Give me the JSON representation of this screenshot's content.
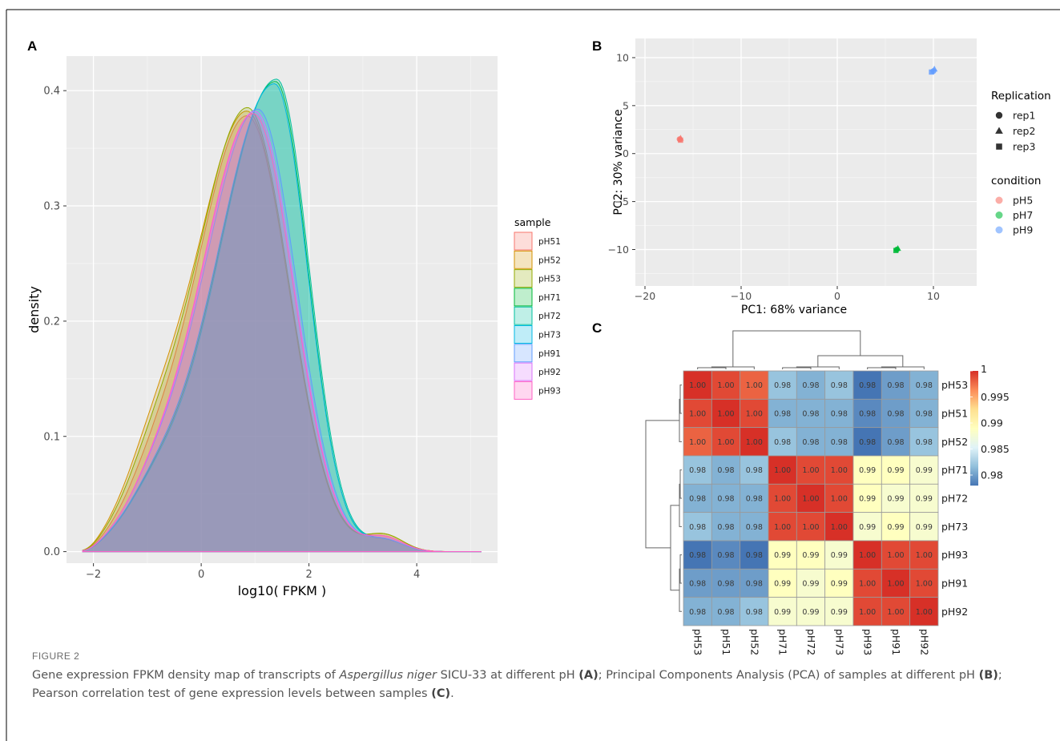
{
  "figure": {
    "label": "FIGURE 2",
    "caption_parts": {
      "p1": "Gene expression FPKM density map of transcripts of ",
      "species": "Aspergillus niger",
      "p2": " SICU-33 at different pH ",
      "refA": "(A)",
      "p3": "; Principal Components Analysis (PCA) of samples at different pH ",
      "refB": "(B)",
      "p4": "; Pearson correlation test of gene expression levels between samples ",
      "refC": "(C)",
      "p5": "."
    }
  },
  "chart_data": [
    {
      "panel": "A",
      "type": "area",
      "xlabel": "log10( FPKM )",
      "ylabel": "density",
      "xlim": [
        -2.5,
        5.5
      ],
      "ylim": [
        -0.01,
        0.43
      ],
      "xticks": [
        -2,
        0,
        2,
        4
      ],
      "yticks": [
        0.0,
        0.1,
        0.2,
        0.3,
        0.4
      ],
      "ytick_labels": [
        "0.0",
        "0.1",
        "0.2",
        "0.3",
        "0.4"
      ],
      "legend_title": "sample",
      "legend_position": "right",
      "grid": true,
      "series": [
        {
          "name": "pH51",
          "color": "#F8766D",
          "mode": 0.85,
          "peak": 0.378,
          "sdL": 0.95,
          "sdR": 0.78,
          "sh1": 0.04,
          "sh2": 0.012
        },
        {
          "name": "pH52",
          "color": "#D39200",
          "mode": 0.85,
          "peak": 0.382,
          "sdL": 0.97,
          "sdR": 0.77,
          "sh1": 0.055,
          "sh2": 0.014
        },
        {
          "name": "pH53",
          "color": "#93AA00",
          "mode": 0.86,
          "peak": 0.385,
          "sdL": 0.96,
          "sdR": 0.77,
          "sh1": 0.05,
          "sh2": 0.014
        },
        {
          "name": "pH71",
          "color": "#00BA38",
          "mode": 1.38,
          "peak": 0.408,
          "sdL": 1.1,
          "sdR": 0.6,
          "sh1": 0.03,
          "sh2": 0.01
        },
        {
          "name": "pH72",
          "color": "#00C19F",
          "mode": 1.4,
          "peak": 0.41,
          "sdL": 1.1,
          "sdR": 0.6,
          "sh1": 0.03,
          "sh2": 0.01
        },
        {
          "name": "pH73",
          "color": "#00B9E3",
          "mode": 1.36,
          "peak": 0.406,
          "sdL": 1.1,
          "sdR": 0.61,
          "sh1": 0.03,
          "sh2": 0.01
        },
        {
          "name": "pH91",
          "color": "#619CFF",
          "mode": 1.05,
          "peak": 0.384,
          "sdL": 1.02,
          "sdR": 0.72,
          "sh1": 0.03,
          "sh2": 0.01
        },
        {
          "name": "pH92",
          "color": "#DB72FB",
          "mode": 1.0,
          "peak": 0.382,
          "sdL": 1.0,
          "sdR": 0.73,
          "sh1": 0.03,
          "sh2": 0.012
        },
        {
          "name": "pH93",
          "color": "#FF61C3",
          "mode": 0.97,
          "peak": 0.38,
          "sdL": 0.99,
          "sdR": 0.74,
          "sh1": 0.03,
          "sh2": 0.012
        }
      ]
    },
    {
      "panel": "B",
      "type": "scatter",
      "xlabel": "PC1: 68% variance",
      "ylabel": "PC2: 30% variance",
      "xlim": [
        -21,
        14.5
      ],
      "ylim": [
        -13.8,
        12
      ],
      "xticks": [
        -20,
        -10,
        0,
        10
      ],
      "xtick_labels": [
        "−20",
        "−10",
        "0",
        "10"
      ],
      "yticks": [
        -10,
        -5,
        0,
        5,
        10
      ],
      "ytick_labels": [
        "−10",
        "−5",
        "0",
        "5",
        "10"
      ],
      "grid": true,
      "legend_position": "right",
      "shape_legend": {
        "title": "Replication",
        "items": [
          "rep1",
          "rep2",
          "rep3"
        ]
      },
      "color_legend": {
        "title": "condition",
        "items": [
          {
            "name": "pH5",
            "color": "#F8766D"
          },
          {
            "name": "pH7",
            "color": "#00BA38"
          },
          {
            "name": "pH9",
            "color": "#619CFF"
          }
        ]
      },
      "points": [
        {
          "condition": "pH5",
          "rep": "rep1",
          "x": -16.4,
          "y": 1.5
        },
        {
          "condition": "pH5",
          "rep": "rep2",
          "x": -16.3,
          "y": 1.6
        },
        {
          "condition": "pH5",
          "rep": "rep3",
          "x": -16.3,
          "y": 1.4
        },
        {
          "condition": "pH7",
          "rep": "rep1",
          "x": 6.2,
          "y": -10.0
        },
        {
          "condition": "pH7",
          "rep": "rep2",
          "x": 6.3,
          "y": -9.9
        },
        {
          "condition": "pH7",
          "rep": "rep3",
          "x": 6.1,
          "y": -10.1
        },
        {
          "condition": "pH9",
          "rep": "rep1",
          "x": 10.0,
          "y": 8.6
        },
        {
          "condition": "pH9",
          "rep": "rep2",
          "x": 10.1,
          "y": 8.8
        },
        {
          "condition": "pH9",
          "rep": "rep3",
          "x": 9.8,
          "y": 8.5
        }
      ]
    },
    {
      "panel": "C",
      "type": "heatmap",
      "columns": [
        "pH53",
        "pH51",
        "pH52",
        "pH71",
        "pH72",
        "pH73",
        "pH93",
        "pH91",
        "pH92"
      ],
      "rows": [
        "pH53",
        "pH51",
        "pH52",
        "pH71",
        "pH72",
        "pH73",
        "pH93",
        "pH91",
        "pH92"
      ],
      "labels": [
        [
          "1.00",
          "1.00",
          "1.00",
          "0.98",
          "0.98",
          "0.98",
          "0.98",
          "0.98",
          "0.98"
        ],
        [
          "1.00",
          "1.00",
          "1.00",
          "0.98",
          "0.98",
          "0.98",
          "0.98",
          "0.98",
          "0.98"
        ],
        [
          "1.00",
          "1.00",
          "1.00",
          "0.98",
          "0.98",
          "0.98",
          "0.98",
          "0.98",
          "0.98"
        ],
        [
          "0.98",
          "0.98",
          "0.98",
          "1.00",
          "1.00",
          "1.00",
          "0.99",
          "0.99",
          "0.99"
        ],
        [
          "0.98",
          "0.98",
          "0.98",
          "1.00",
          "1.00",
          "1.00",
          "0.99",
          "0.99",
          "0.99"
        ],
        [
          "0.98",
          "0.98",
          "0.98",
          "1.00",
          "1.00",
          "1.00",
          "0.99",
          "0.99",
          "0.99"
        ],
        [
          "0.98",
          "0.98",
          "0.98",
          "0.99",
          "0.99",
          "0.99",
          "1.00",
          "1.00",
          "1.00"
        ],
        [
          "0.98",
          "0.98",
          "0.98",
          "0.99",
          "0.99",
          "0.99",
          "1.00",
          "1.00",
          "1.00"
        ],
        [
          "0.98",
          "0.98",
          "0.98",
          "0.99",
          "0.99",
          "0.99",
          "1.00",
          "1.00",
          "1.00"
        ]
      ],
      "values": [
        [
          1.0,
          0.999,
          0.998,
          0.982,
          0.981,
          0.982,
          0.978,
          0.98,
          0.981
        ],
        [
          0.999,
          1.0,
          0.999,
          0.981,
          0.981,
          0.981,
          0.979,
          0.98,
          0.981
        ],
        [
          0.998,
          0.999,
          1.0,
          0.982,
          0.981,
          0.981,
          0.978,
          0.98,
          0.982
        ],
        [
          0.982,
          0.981,
          0.982,
          1.0,
          0.999,
          0.999,
          0.989,
          0.989,
          0.988
        ],
        [
          0.981,
          0.981,
          0.981,
          0.999,
          1.0,
          0.999,
          0.989,
          0.988,
          0.988
        ],
        [
          0.982,
          0.981,
          0.981,
          0.999,
          0.999,
          1.0,
          0.988,
          0.989,
          0.988
        ],
        [
          0.978,
          0.979,
          0.978,
          0.989,
          0.989,
          0.988,
          1.0,
          0.999,
          0.999
        ],
        [
          0.98,
          0.98,
          0.98,
          0.989,
          0.988,
          0.989,
          0.999,
          1.0,
          0.999
        ],
        [
          0.981,
          0.981,
          0.982,
          0.988,
          0.988,
          0.988,
          0.999,
          0.999,
          1.0
        ]
      ],
      "colorbar": {
        "min": 0.978,
        "max": 1.0,
        "ticks": [
          1,
          0.995,
          0.99,
          0.985,
          0.98
        ],
        "tick_labels": [
          "1",
          "0.995",
          "0.99",
          "0.985",
          "0.98"
        ],
        "colors": [
          "#4575B4",
          "#91BFDB",
          "#E0F3F8",
          "#FFFFBF",
          "#FEE090",
          "#FC8D59",
          "#D73027"
        ]
      }
    }
  ]
}
